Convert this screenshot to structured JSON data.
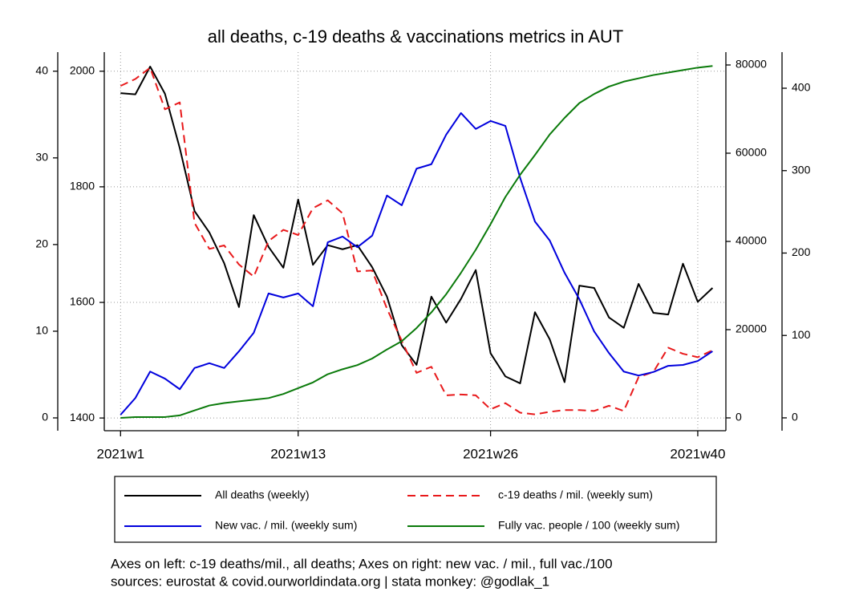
{
  "chart_data": {
    "type": "line",
    "title": "all deaths, c-19 deaths & vaccinations metrics in AUT",
    "notes": [
      "Axes on left: c-19 deaths/mil., all deaths; Axes on right: new vac. / mil., full vac./100",
      "sources: eurostat & covid.ourworldindata.org | stata monkey: @godlak_1"
    ],
    "x": [
      1,
      2,
      3,
      4,
      5,
      6,
      7,
      8,
      9,
      10,
      11,
      12,
      13,
      14,
      15,
      16,
      17,
      18,
      19,
      20,
      21,
      22,
      23,
      24,
      25,
      26,
      27,
      28,
      29,
      30,
      31,
      32,
      33,
      34,
      35,
      36,
      37,
      38,
      39,
      40,
      41
    ],
    "xlim": [
      -0.1,
      41.9
    ],
    "xticks": [
      {
        "value": 1,
        "label": "2021w1"
      },
      {
        "value": 13,
        "label": "2021w13"
      },
      {
        "value": 26,
        "label": "2021w26"
      },
      {
        "value": 40,
        "label": "2021w40"
      }
    ],
    "ylim": [
      1378,
      2033
    ],
    "yticks": [
      1400,
      1600,
      1800,
      2000
    ],
    "y3lim": [
      -1.48,
      42.2
    ],
    "y3ticks": [
      0,
      10,
      20,
      30,
      40
    ],
    "y2lim": [
      -2909,
      82909
    ],
    "y2ticks": [
      0,
      20000,
      40000,
      60000,
      80000
    ],
    "y4lim": [
      -15.6,
      443.8
    ],
    "y4ticks": [
      0,
      100,
      200,
      300,
      400
    ],
    "grid": true,
    "series": [
      {
        "name": "All deaths (weekly)",
        "color": "#000000",
        "axis": "y",
        "line_style": "solid",
        "values": [
          1962,
          1960,
          2008,
          1961,
          1867,
          1758,
          1721,
          1668,
          1592,
          1751,
          1696,
          1660,
          1778,
          1665,
          1699,
          1692,
          1699,
          1661,
          1610,
          1526,
          1492,
          1610,
          1565,
          1606,
          1656,
          1512,
          1472,
          1460,
          1583,
          1536,
          1462,
          1629,
          1625,
          1574,
          1556,
          1632,
          1582,
          1579,
          1667,
          1601,
          1625
        ]
      },
      {
        "name": "c-19 deaths / mil. (weekly sum)",
        "color": "#e8191b",
        "axis": "y3",
        "line_style": "dashed",
        "values": [
          38.3,
          39.1,
          40.4,
          35.6,
          36.4,
          22.5,
          19.5,
          19.9,
          17.7,
          16.3,
          20.4,
          21.7,
          21.1,
          24.2,
          25.1,
          23.6,
          16.9,
          17.0,
          12.6,
          8.9,
          5.2,
          5.9,
          2.6,
          2.7,
          2.6,
          1.0,
          1.7,
          0.6,
          0.4,
          0.7,
          0.9,
          0.9,
          0.8,
          1.4,
          0.8,
          4.7,
          5.3,
          8.1,
          7.4,
          7.0,
          7.8
        ]
      },
      {
        "name": "New vac. / mil. (weekly sum)",
        "color": "#0000dd",
        "axis": "y2",
        "line_style": "solid",
        "values": [
          700,
          4500,
          10500,
          8900,
          6500,
          11300,
          12400,
          11300,
          15100,
          19300,
          28200,
          27300,
          28200,
          25300,
          39800,
          41100,
          38700,
          41300,
          50400,
          48200,
          56500,
          57500,
          64200,
          69100,
          65500,
          67300,
          66200,
          54400,
          44500,
          40200,
          32900,
          26900,
          19600,
          14700,
          10500,
          9600,
          10400,
          11800,
          12000,
          12900,
          15100
        ]
      },
      {
        "name": "Fully vac. people / 100 (weekly sum)",
        "color": "#0a7a0a",
        "axis": "y4",
        "line_style": "solid",
        "values": [
          0,
          1,
          1,
          1,
          3,
          9,
          15,
          18,
          20,
          22,
          24,
          29,
          36,
          43,
          53,
          59,
          64,
          72,
          83,
          93,
          109,
          128,
          150,
          176,
          204,
          235,
          268,
          295,
          319,
          344,
          364,
          382,
          393,
          402,
          408,
          412,
          416,
          419,
          422,
          425,
          427
        ]
      }
    ]
  }
}
